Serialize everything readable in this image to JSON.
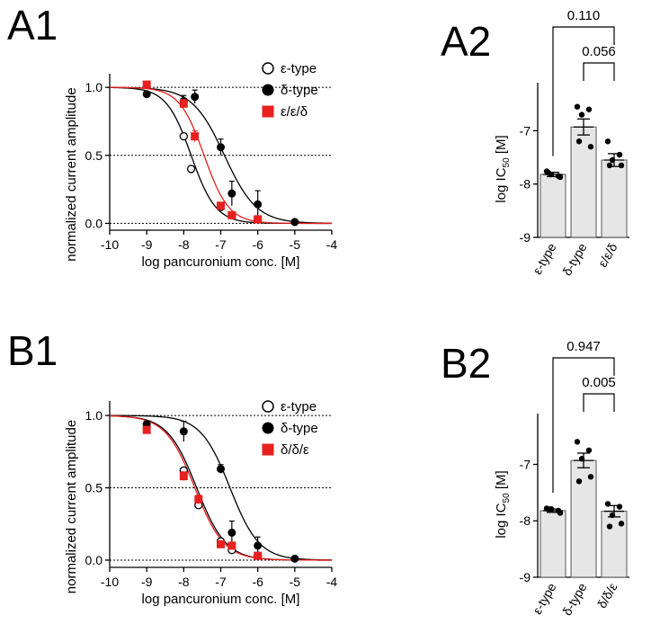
{
  "panels": [
    {
      "id": "A1",
      "label": "A1"
    },
    {
      "id": "A2",
      "label": "A2"
    },
    {
      "id": "B1",
      "label": "B1"
    },
    {
      "id": "B2",
      "label": "B2"
    }
  ],
  "colors": {
    "epsilon": "#000000",
    "delta": "#000000",
    "chimera": "#e8201f",
    "bar_fill": "#e6e6e6",
    "grid": "#000000"
  },
  "chart_data": [
    {
      "id": "A1",
      "type": "scatter",
      "xlabel": "log pancuronium conc. [M]",
      "ylabel": "normalized current amplitude",
      "xlim": [
        -10,
        -4
      ],
      "ylim": [
        -0.05,
        1.1
      ],
      "xticks": [
        -10,
        -9,
        -8,
        -7,
        -6,
        -5,
        -4
      ],
      "yticks": [
        0.0,
        0.5,
        1.0
      ],
      "xtick_labels": [
        "-10",
        "-9",
        "-8",
        "-7",
        "-6",
        "-5",
        "-4"
      ],
      "ytick_labels": [
        "0.0",
        "0.5",
        "1.0"
      ],
      "legend_position": "top-right",
      "series": [
        {
          "name": "ε-type",
          "marker": "open-circle",
          "logIC50": -7.8,
          "hill": 1.3,
          "x": [
            -8,
            -7.8,
            -7,
            -6.7,
            -6
          ],
          "y": [
            0.64,
            0.4,
            0.12,
            0.06,
            0.03
          ],
          "err": [
            0.02,
            0.02,
            0.01,
            0.01,
            0.005
          ]
        },
        {
          "name": "δ-type",
          "marker": "filled-circle",
          "logIC50": -6.9,
          "hill": 1.0,
          "x": [
            -9,
            -8,
            -7.7,
            -7,
            -6.7,
            -6,
            -5
          ],
          "y": [
            0.95,
            0.9,
            0.93,
            0.56,
            0.22,
            0.14,
            0.01
          ],
          "err": [
            0.02,
            0.04,
            0.05,
            0.06,
            0.09,
            0.1,
            0.01
          ]
        },
        {
          "name": "ε/ε/δ",
          "marker": "filled-square",
          "logIC50": -7.45,
          "hill": 1.3,
          "x": [
            -9,
            -8,
            -7.7,
            -7,
            -6.7,
            -6
          ],
          "y": [
            1.02,
            0.88,
            0.64,
            0.13,
            0.06,
            0.03
          ],
          "err": [
            0.01,
            0.03,
            0.04,
            0.02,
            0.01,
            0.005
          ]
        }
      ]
    },
    {
      "id": "A2",
      "type": "bar",
      "ylabel": "log IC",
      "ylabel_sub": "50",
      "ylabel_unit": " [M]",
      "ylim": [
        -9,
        -6.1
      ],
      "yticks": [
        -9,
        -8,
        -7
      ],
      "ytick_labels": [
        "-9",
        "-8",
        "-7"
      ],
      "categories": [
        "ε-type",
        "δ-type",
        "ε/ε/δ"
      ],
      "values": [
        -7.82,
        -6.93,
        -7.55
      ],
      "sem": [
        0.04,
        0.15,
        0.12
      ],
      "points": [
        [
          -7.76,
          -7.85,
          -7.82,
          -7.87,
          -7.79
        ],
        [
          -6.55,
          -6.6,
          -6.7,
          -7.3,
          -7.2
        ],
        [
          -7.2,
          -7.45,
          -7.55,
          -7.65,
          -7.65
        ]
      ],
      "comparisons": [
        {
          "from": 0,
          "to": 2,
          "label": "0.110",
          "level": 2
        },
        {
          "from": 1,
          "to": 2,
          "label": "0.056",
          "level": 1
        }
      ]
    },
    {
      "id": "B1",
      "type": "scatter",
      "xlabel": "log pancuronium conc. [M]",
      "ylabel": "normalized current amplitude",
      "xlim": [
        -10,
        -4
      ],
      "ylim": [
        -0.05,
        1.1
      ],
      "xticks": [
        -10,
        -9,
        -8,
        -7,
        -6,
        -5,
        -4
      ],
      "yticks": [
        0.0,
        0.5,
        1.0
      ],
      "xtick_labels": [
        "-10",
        "-9",
        "-8",
        "-7",
        "-6",
        "-5",
        "-4"
      ],
      "ytick_labels": [
        "0.0",
        "0.5",
        "1.0"
      ],
      "legend_position": "top-right",
      "series": [
        {
          "name": "ε-type",
          "marker": "open-circle",
          "logIC50": -7.65,
          "hill": 1.1,
          "x": [
            -8,
            -7.6,
            -7,
            -6.7,
            -6
          ],
          "y": [
            0.62,
            0.38,
            0.13,
            0.07,
            0.03
          ],
          "err": [
            0.02,
            0.02,
            0.02,
            0.01,
            0.005
          ]
        },
        {
          "name": "δ-type",
          "marker": "filled-circle",
          "logIC50": -6.75,
          "hill": 1.1,
          "x": [
            -9,
            -8,
            -7,
            -6.7,
            -6,
            -5
          ],
          "y": [
            0.94,
            0.89,
            0.63,
            0.19,
            0.1,
            0.01
          ],
          "err": [
            0.02,
            0.07,
            0.03,
            0.08,
            0.06,
            0.01
          ]
        },
        {
          "name": "δ/δ/ε",
          "marker": "filled-square",
          "logIC50": -7.7,
          "hill": 1.1,
          "x": [
            -9,
            -8,
            -7.6,
            -7,
            -6.7,
            -6
          ],
          "y": [
            0.9,
            0.58,
            0.42,
            0.11,
            0.1,
            0.03
          ],
          "err": [
            0.02,
            0.03,
            0.03,
            0.02,
            0.01,
            0.005
          ]
        }
      ]
    },
    {
      "id": "B2",
      "type": "bar",
      "ylabel": "log IC",
      "ylabel_sub": "50",
      "ylabel_unit": " [M]",
      "ylim": [
        -9,
        -6.1
      ],
      "yticks": [
        -9,
        -8,
        -7
      ],
      "ytick_labels": [
        "-9",
        "-8",
        "-7"
      ],
      "categories": [
        "ε-type",
        "δ-type",
        "δ/δ/ε"
      ],
      "values": [
        -7.82,
        -6.93,
        -7.83
      ],
      "sem": [
        0.03,
        0.13,
        0.1
      ],
      "points": [
        [
          -7.78,
          -7.82,
          -7.79,
          -7.86,
          -7.8
        ],
        [
          -6.6,
          -6.75,
          -6.9,
          -7.22,
          -7.3
        ],
        [
          -7.7,
          -7.75,
          -7.9,
          -8.05,
          -8.1
        ]
      ],
      "comparisons": [
        {
          "from": 0,
          "to": 2,
          "label": "0.947",
          "level": 2
        },
        {
          "from": 1,
          "to": 2,
          "label": "0.005",
          "level": 1
        }
      ]
    }
  ]
}
